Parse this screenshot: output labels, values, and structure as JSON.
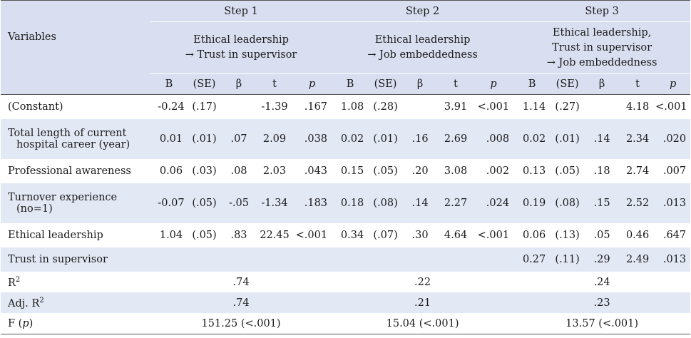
{
  "header": {
    "variables_label": "Variables",
    "steps": [
      {
        "label": "Step 1",
        "model_lines": [
          "Ethical leadership",
          "→ Trust in supervisor"
        ]
      },
      {
        "label": "Step 2",
        "model_lines": [
          "Ethical leadership",
          "→ Job embeddedness"
        ]
      },
      {
        "label": "Step 3",
        "model_lines": [
          "Ethical leadership,",
          "Trust in supervisor",
          "→ Job embeddedness"
        ]
      }
    ],
    "columns": [
      "B",
      "(SE)",
      "β",
      "t",
      "p"
    ]
  },
  "rows": [
    {
      "label_lines": [
        "(Constant)"
      ],
      "s1": [
        "-0.24",
        "(.17)",
        "",
        "-1.39",
        ".167"
      ],
      "s2": [
        "1.08",
        "(.28)",
        "",
        "3.91",
        "<.001"
      ],
      "s3": [
        "1.14",
        "(.27)",
        "",
        "4.18",
        "<.001"
      ]
    },
    {
      "label_lines": [
        "Total length of current",
        "hospital career (year)"
      ],
      "s1": [
        "0.01",
        "(.01)",
        ".07",
        "2.09",
        ".038"
      ],
      "s2": [
        "0.02",
        "(.01)",
        ".16",
        "2.69",
        ".008"
      ],
      "s3": [
        "0.02",
        "(.01)",
        ".14",
        "2.34",
        ".020"
      ]
    },
    {
      "label_lines": [
        "Professional awareness"
      ],
      "s1": [
        "0.06",
        "(.03)",
        ".08",
        "2.03",
        ".043"
      ],
      "s2": [
        "0.15",
        "(.05)",
        ".20",
        "3.08",
        ".002"
      ],
      "s3": [
        "0.13",
        "(.05)",
        ".18",
        "2.74",
        ".007"
      ]
    },
    {
      "label_lines": [
        "Turnover experience",
        "(no=1)"
      ],
      "s1": [
        "-0.07",
        "(.05)",
        "-.05",
        "-1.34",
        ".183"
      ],
      "s2": [
        "0.18",
        "(.08)",
        ".14",
        "2.27",
        ".024"
      ],
      "s3": [
        "0.19",
        "(.08)",
        ".15",
        "2.52",
        ".013"
      ]
    },
    {
      "label_lines": [
        "Ethical leadership"
      ],
      "s1": [
        "1.04",
        "(.05)",
        ".83",
        "22.45",
        "<.001"
      ],
      "s2": [
        "0.34",
        "(.07)",
        ".30",
        "4.64",
        "<.001"
      ],
      "s3": [
        "0.06",
        "(.13)",
        ".05",
        "0.46",
        ".647"
      ]
    },
    {
      "label_lines": [
        "Trust in supervisor"
      ],
      "s1": [
        "",
        "",
        "",
        "",
        ""
      ],
      "s2": [
        "",
        "",
        "",
        "",
        ""
      ],
      "s3": [
        "0.27",
        "(.11)",
        ".29",
        "2.49",
        ".013"
      ]
    }
  ],
  "summary": [
    {
      "label": "R",
      "sup": "2",
      "s1": ".74",
      "s2": ".22",
      "s3": ".24"
    },
    {
      "label": "Adj. R",
      "sup": "2",
      "s1": ".74",
      "s2": ".21",
      "s3": ".23"
    },
    {
      "label": "F (",
      "label_ital": "p",
      "label_end": ")",
      "s1": "151.25 (<.001)",
      "s2": "15.04 (<.001)",
      "s3": "13.57 (<.001)"
    }
  ]
}
